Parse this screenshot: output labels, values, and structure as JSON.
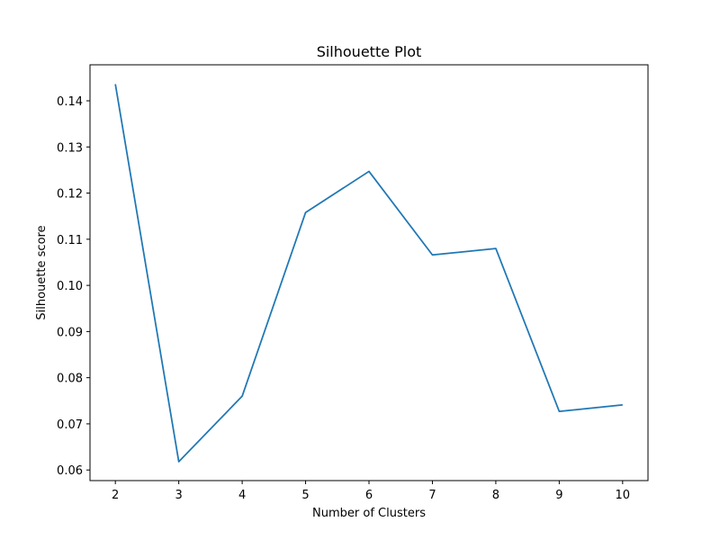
{
  "chart_data": {
    "type": "line",
    "title": "Silhouette Plot",
    "xlabel": "Number of Clusters",
    "ylabel": "Silhouette score",
    "x": [
      2,
      3,
      4,
      5,
      6,
      7,
      8,
      9,
      10
    ],
    "x_ticks": [
      "2",
      "3",
      "4",
      "5",
      "6",
      "7",
      "8",
      "9",
      "10"
    ],
    "y_ticks": [
      "0.06",
      "0.07",
      "0.08",
      "0.09",
      "0.10",
      "0.11",
      "0.12",
      "0.13",
      "0.14"
    ],
    "xlim": [
      1.6,
      10.4
    ],
    "ylim": [
      0.0577,
      0.1478
    ],
    "series": [
      {
        "color": "#1f77b4",
        "values": [
          0.1436,
          0.0618,
          0.076,
          0.1158,
          0.1247,
          0.1066,
          0.108,
          0.0727,
          0.0741
        ]
      }
    ],
    "grid": false,
    "legend": "none"
  }
}
